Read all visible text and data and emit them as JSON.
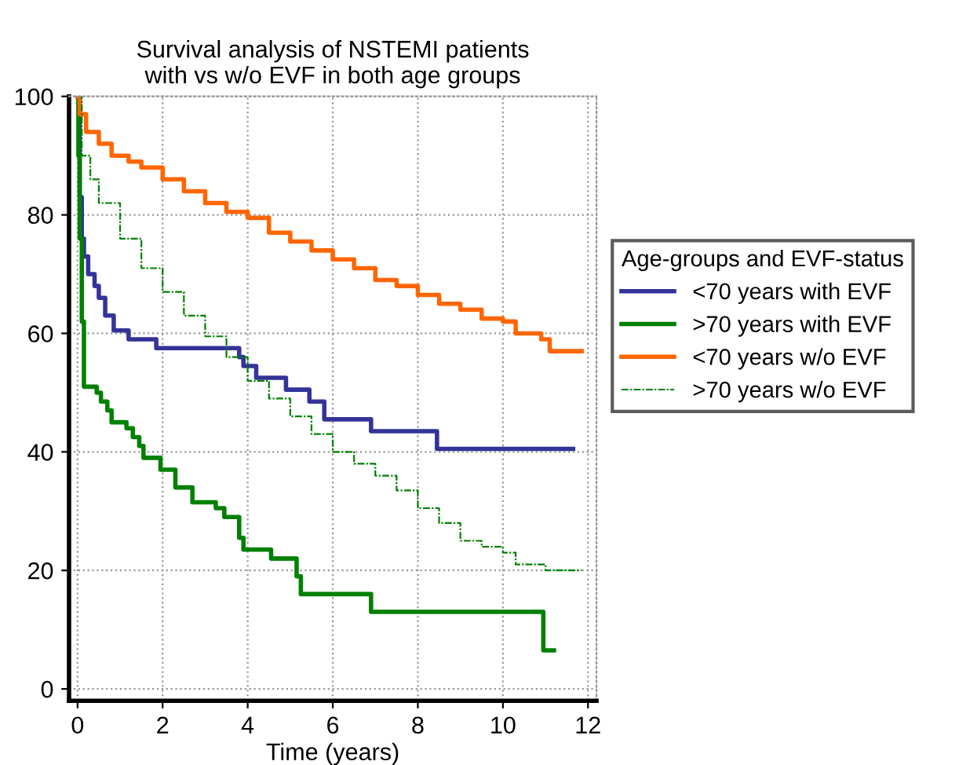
{
  "chart_data": {
    "type": "step",
    "title": "Survival analysis of NSTEMI patients\nwith vs w/o EVF in both age groups",
    "xlabel": "Time (years)",
    "legend_title": "Age-groups and EVF-status",
    "legend": "right",
    "grid": true,
    "xlim": [
      -0.2,
      12.2
    ],
    "ylim": [
      -2,
      100
    ],
    "xticks": [
      0,
      2,
      4,
      6,
      8,
      10,
      12
    ],
    "yticks": [
      0,
      20,
      40,
      60,
      80,
      100
    ],
    "series": [
      {
        "name": "<70 years with EVF",
        "color": "#333399",
        "line_style": "solid",
        "x": [
          0,
          0.05,
          0.1,
          0.15,
          0.25,
          0.4,
          0.5,
          0.65,
          0.85,
          1.2,
          1.85,
          3.8,
          3.9,
          4.2,
          4.9,
          5.45,
          5.8,
          6.9,
          8.45,
          11.65
        ],
        "values": [
          100,
          83,
          76,
          73,
          70,
          68,
          66,
          63,
          60.5,
          59,
          57.5,
          56,
          54.5,
          52.5,
          50.5,
          48.5,
          45.5,
          43.5,
          40.5,
          40.5
        ]
      },
      {
        "name": ">70 years with EVF",
        "color": "#008000",
        "line_style": "solid",
        "x": [
          0,
          0.02,
          0.05,
          0.1,
          0.15,
          0.45,
          0.55,
          0.7,
          0.8,
          1.15,
          1.3,
          1.45,
          1.55,
          1.95,
          2.3,
          2.7,
          3.25,
          3.45,
          3.8,
          3.9,
          4.55,
          5.15,
          5.25,
          6.9,
          10.95,
          11.2
        ],
        "values": [
          100,
          90,
          76,
          62,
          51,
          50,
          48.5,
          47,
          45,
          44,
          42.5,
          41,
          39,
          37,
          34,
          31.5,
          30.5,
          29,
          25.5,
          23.5,
          22,
          19,
          16,
          13,
          6.5,
          6.5
        ]
      },
      {
        "name": "<70 years w/o EVF",
        "color": "#ff6600",
        "line_style": "solid",
        "x": [
          0,
          0.05,
          0.2,
          0.5,
          0.8,
          1.2,
          1.5,
          2,
          2.5,
          3,
          3.5,
          4,
          4.5,
          5,
          5.5,
          6,
          6.5,
          7,
          7.5,
          8,
          8.5,
          9,
          9.5,
          10,
          10.3,
          10.9,
          11.1,
          11.85
        ],
        "values": [
          100,
          97,
          94,
          92,
          90,
          89,
          88,
          86,
          84,
          82,
          80.5,
          79.5,
          77,
          75.5,
          74,
          72.5,
          71,
          69,
          68,
          66.5,
          65,
          64,
          62.5,
          62,
          60,
          59,
          57,
          57
        ]
      },
      {
        "name": ">70 years w/o EVF",
        "color": "#008000",
        "line_style": "dashed",
        "x": [
          0,
          0.1,
          0.3,
          0.5,
          1,
          1.5,
          2,
          2.5,
          3,
          3.5,
          4,
          4.5,
          5,
          5.5,
          6,
          6.5,
          7,
          7.5,
          8,
          8.5,
          9,
          9.5,
          10,
          10.3,
          11,
          11.85
        ],
        "values": [
          100,
          90,
          86,
          82,
          76,
          71,
          67,
          63,
          59.5,
          56,
          52,
          49,
          46,
          43,
          40,
          38,
          36,
          33.5,
          30.5,
          28,
          25,
          24,
          23,
          21,
          20,
          20
        ]
      }
    ]
  }
}
